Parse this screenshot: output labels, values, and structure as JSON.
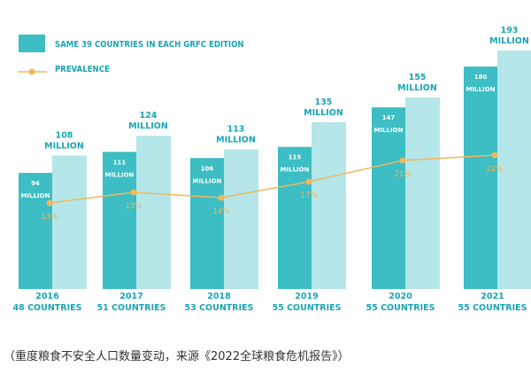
{
  "caption": "（重度粮食不安全人口数量变动，来源《2022全球粮食危机报告》）",
  "chart_data": {
    "type": "bar",
    "legend": [
      {
        "name": "SAME 39 COUNTRIES IN EACH GRFC EDITION",
        "kind": "bar",
        "color": "#3dbdc4"
      },
      {
        "name": "PREVALENCE",
        "kind": "line",
        "color": "#f0b85a"
      }
    ],
    "categories": [
      {
        "year": "2016",
        "sub": "48 COUNTRIES"
      },
      {
        "year": "2017",
        "sub": "51 COUNTRIES"
      },
      {
        "year": "2018",
        "sub": "53 COUNTRIES"
      },
      {
        "year": "2019",
        "sub": "55 COUNTRIES"
      },
      {
        "year": "2020",
        "sub": "55 COUNTRIES"
      },
      {
        "year": "2021",
        "sub": "55 COUNTRIES"
      }
    ],
    "series": [
      {
        "name": "SAME 39 COUNTRIES IN EACH GRFC EDITION",
        "values": [
          94,
          111,
          106,
          115,
          147,
          180
        ],
        "labels": [
          "94",
          "111",
          "106",
          "115",
          "147",
          "180"
        ],
        "unit_label": "MILLION"
      },
      {
        "values": [
          108,
          124,
          113,
          135,
          155,
          193
        ],
        "labels": [
          "108",
          "124",
          "113",
          "135",
          "155",
          "193"
        ],
        "unit_label": "MILLION"
      },
      {
        "name": "PREVALENCE",
        "values": [
          13,
          15,
          14,
          17,
          21,
          22
        ],
        "labels": [
          "13%",
          "15%",
          "14%",
          "17%",
          "21%",
          "22%"
        ]
      }
    ],
    "colors": {
      "bar_dark": "#3dbdc4",
      "bar_light": "#b5e6ea",
      "line": "#f0b85a",
      "text": "#1ba5b4"
    }
  }
}
